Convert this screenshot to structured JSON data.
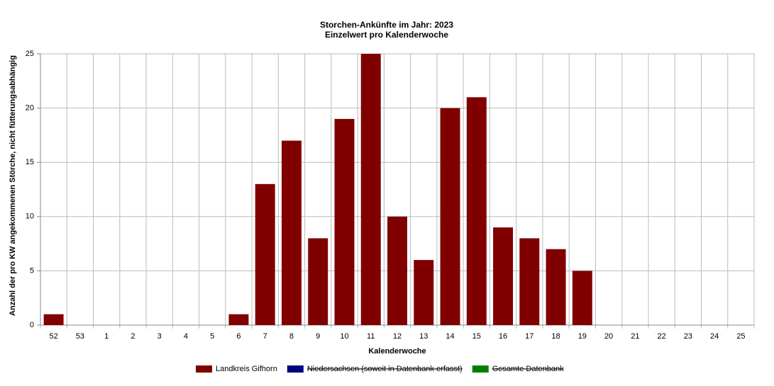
{
  "chart_data": {
    "type": "bar",
    "title": "Storchen-Ankünfte im Jahr: 2023",
    "subtitle": "Einzelwert pro Kalenderwoche",
    "x_label": "Kalenderwoche",
    "y_label": "Anzahl der pro KW angekommenen Störche, nicht fütterungsabhängig",
    "categories": [
      "52",
      "53",
      "1",
      "2",
      "3",
      "4",
      "5",
      "6",
      "7",
      "8",
      "9",
      "10",
      "11",
      "12",
      "13",
      "14",
      "15",
      "16",
      "17",
      "18",
      "19",
      "20",
      "21",
      "22",
      "23",
      "24",
      "25"
    ],
    "series": [
      {
        "name": "Landkreis Gifhorn",
        "color": "#800000",
        "visible": true,
        "values": [
          1,
          0,
          0,
          0,
          0,
          0,
          0,
          1,
          13,
          17,
          8,
          19,
          25,
          10,
          6,
          20,
          21,
          9,
          8,
          7,
          5,
          0,
          0,
          0,
          0,
          0,
          0
        ]
      },
      {
        "name": "Niedersachsen (soweit in Datenbank erfasst)",
        "color": "#000080",
        "visible": false
      },
      {
        "name": "Gesamte Datenbank",
        "color": "#008000",
        "visible": false
      }
    ],
    "ylim": [
      0,
      25
    ],
    "yticks": [
      0,
      5,
      10,
      15,
      20,
      25
    ],
    "grid": true,
    "legend": "bottom"
  }
}
